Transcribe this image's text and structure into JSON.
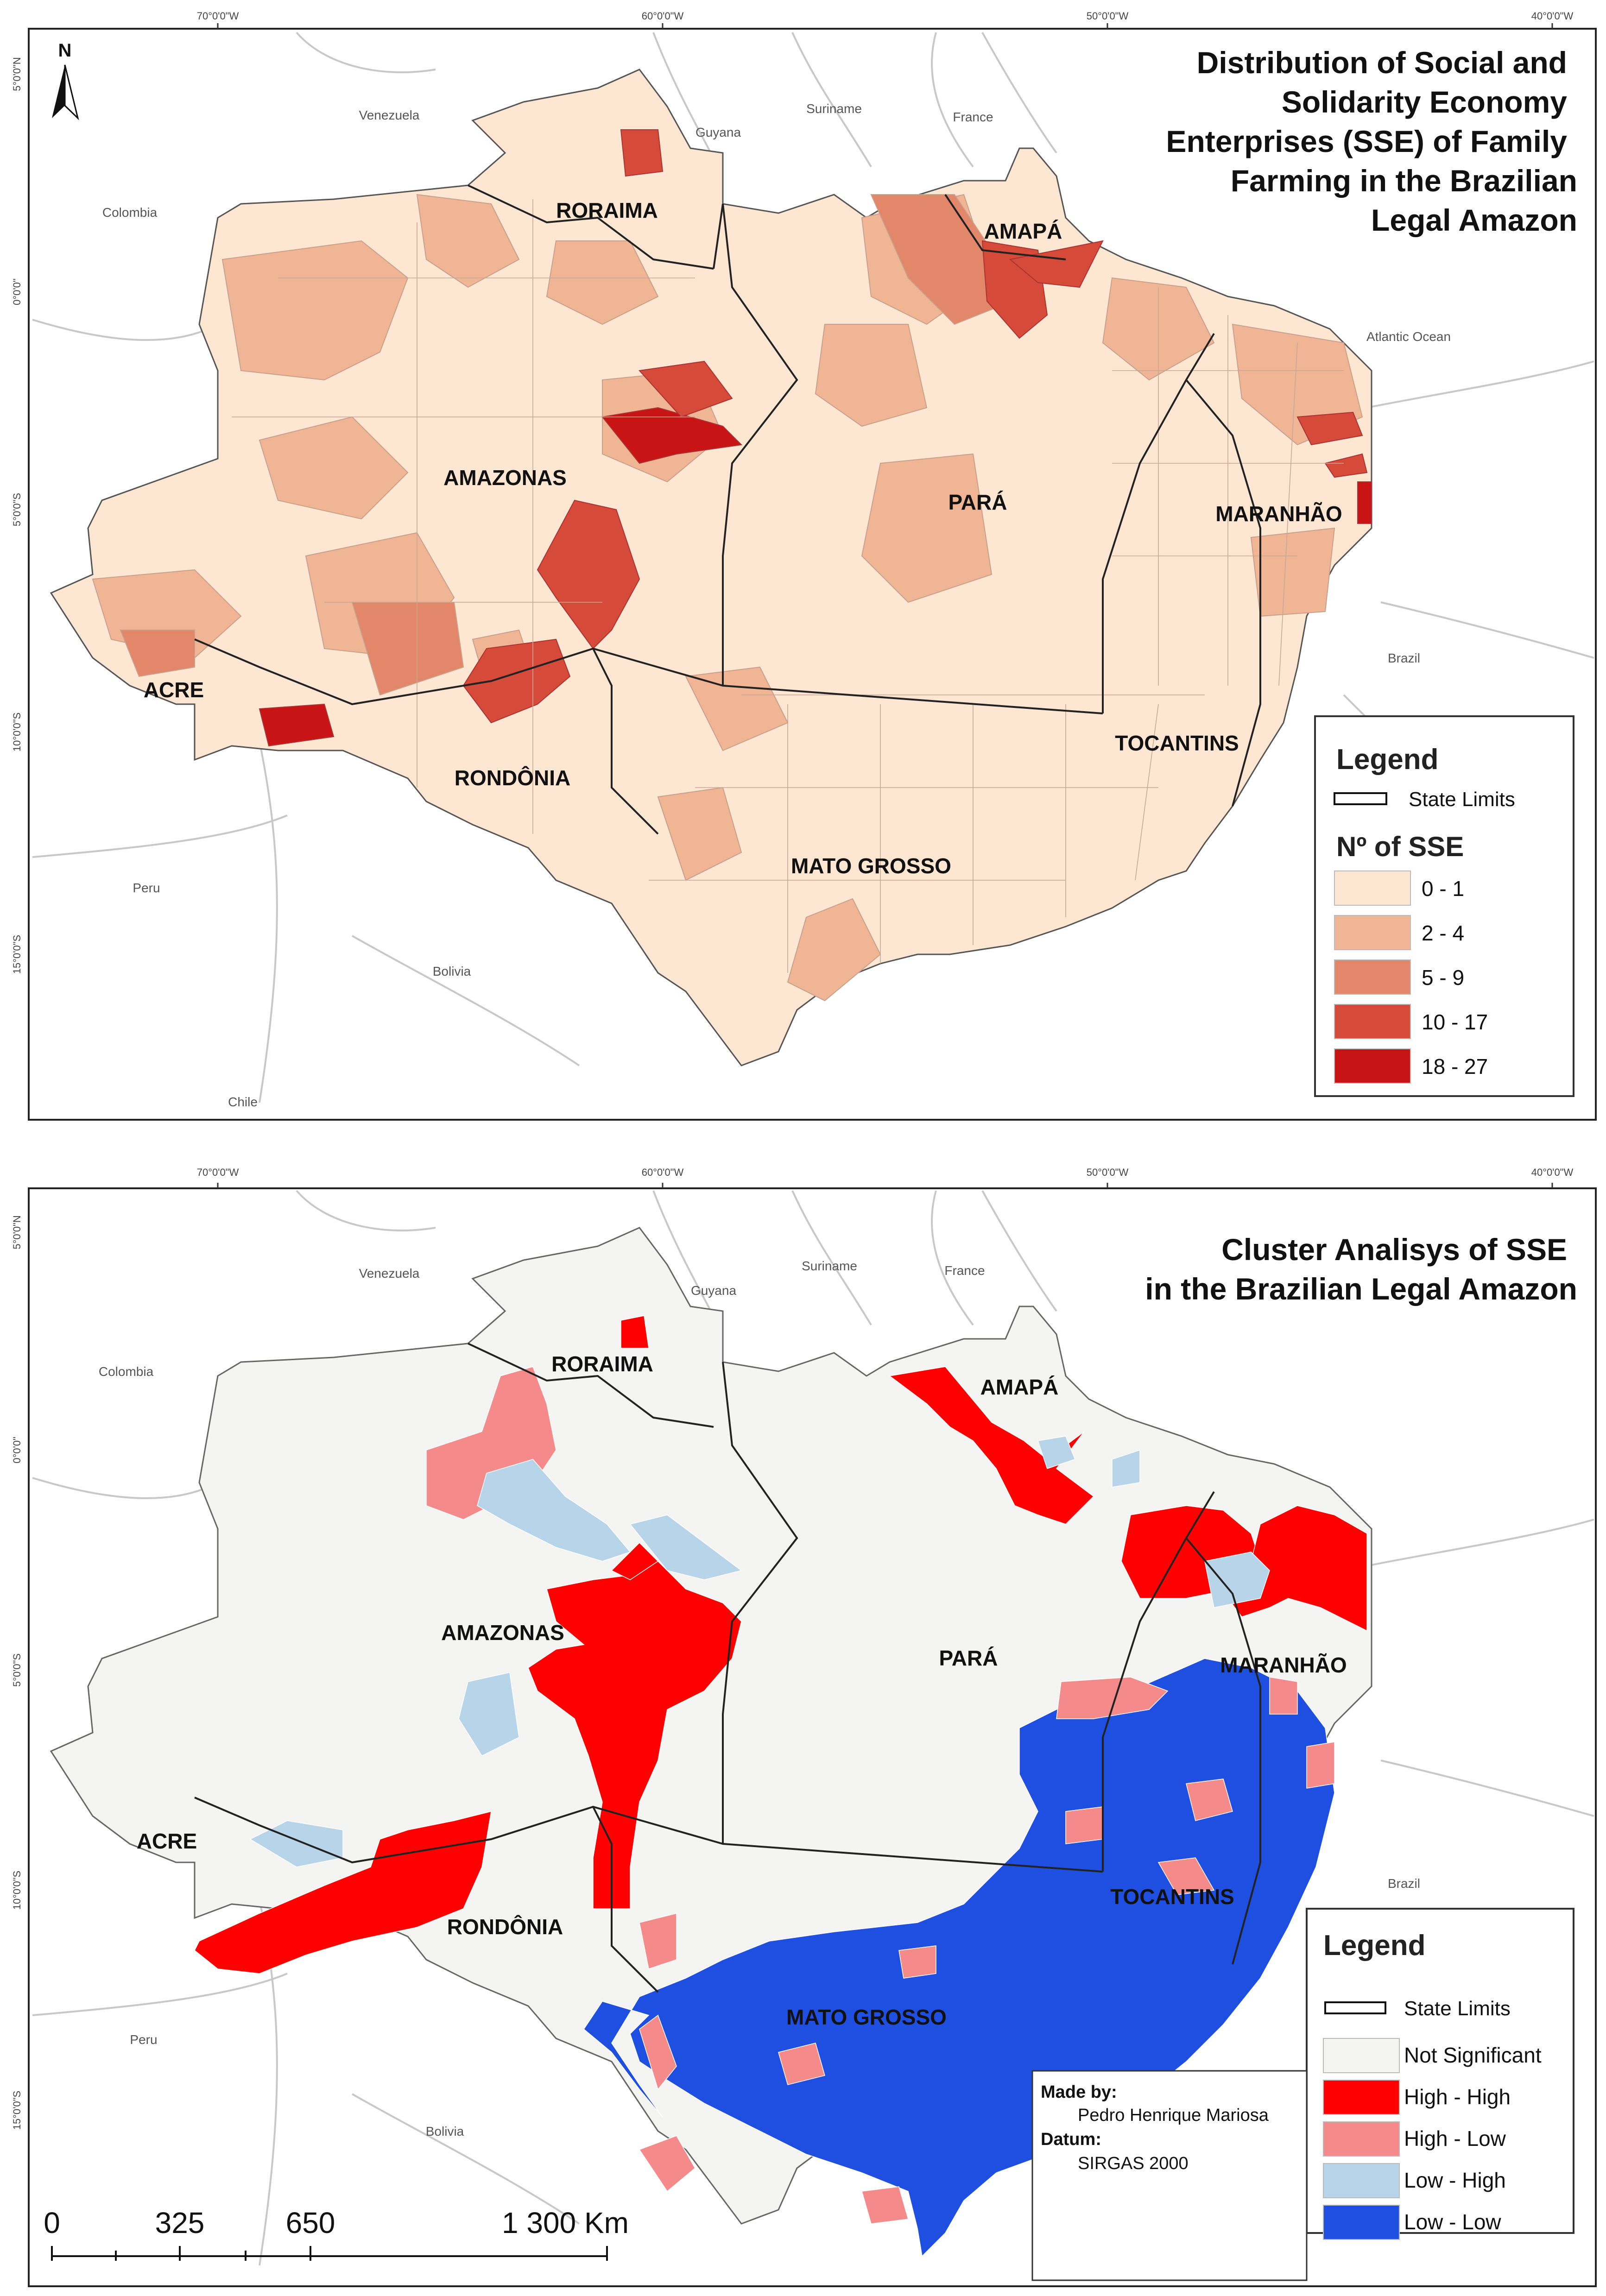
{
  "map1": {
    "title": [
      "Distribution of Social and",
      "Solidarity Economy",
      "Enterprises (SSE) of Family",
      "Farming in the Brazilian",
      "Legal Amazon"
    ],
    "north": "N",
    "top_ticks": [
      "70°0'0\"W",
      "60°0'0\"W",
      "50°0'0\"W",
      "40°0'0\"W"
    ],
    "left_ticks": [
      "5°0'0\"N",
      "0°0'0\"",
      "5°0'0\"S",
      "10°0'0\"S",
      "15°0'0\"S"
    ],
    "countries": [
      "Venezuela",
      "Guyana",
      "Suriname",
      "France",
      "Colombia",
      "Atlantic Ocean",
      "Brazil",
      "Peru",
      "Bolivia",
      "Chile"
    ],
    "states": [
      "RORAIMA",
      "AMAPÁ",
      "AMAZONAS",
      "PARÁ",
      "MARANHÃO",
      "ACRE",
      "RONDÔNIA",
      "TOCANTINS",
      "MATO GROSSO"
    ],
    "legend": {
      "title": "Legend",
      "state_limits": "State Limits",
      "class_title": "Nº of SSE",
      "classes": [
        {
          "label": "0 - 1",
          "color": "#fde6d2"
        },
        {
          "label": "2 - 4",
          "color": "#efb594"
        },
        {
          "label": "5 - 9",
          "color": "#e2876a"
        },
        {
          "label": "10 - 17",
          "color": "#d64a3a"
        },
        {
          "label": "18 - 27",
          "color": "#c81414"
        }
      ]
    }
  },
  "map2": {
    "title": [
      "Cluster Analisys of SSE",
      "in the Brazilian Legal Amazon"
    ],
    "top_ticks": [
      "70°0'0\"W",
      "60°0'0\"W",
      "50°0'0\"W",
      "40°0'0\"W"
    ],
    "left_ticks": [
      "5°0'0\"N",
      "0°0'0\"",
      "5°0'0\"S",
      "10°0'0\"S",
      "15°0'0\"S"
    ],
    "countries": [
      "Venezuela",
      "Guyana",
      "Suriname",
      "France",
      "Colombia",
      "Brazil",
      "Peru",
      "Bolivia"
    ],
    "states": [
      "RORAIMA",
      "AMAPÁ",
      "AMAZONAS",
      "PARÁ",
      "MARANHÃO",
      "ACRE",
      "RONDÔNIA",
      "TOCANTINS",
      "MATO GROSSO"
    ],
    "legend": {
      "title": "Legend",
      "state_limits": "State Limits",
      "classes": [
        {
          "label": "Not Significant",
          "color": "#f4f4f2"
        },
        {
          "label": "High - High",
          "color": "#ff0000"
        },
        {
          "label": "High - Low",
          "color": "#f48a8a"
        },
        {
          "label": "Low - High",
          "color": "#b8d4e8"
        },
        {
          "label": "Low - Low",
          "color": "#1f4fe0"
        }
      ]
    },
    "credits": {
      "made_by_label": "Made by:",
      "made_by": "Pedro Henrique Mariosa",
      "datum_label": "Datum:",
      "datum": "SIRGAS 2000"
    },
    "scale": {
      "labels": [
        "0",
        "325",
        "650",
        "1 300 Km"
      ]
    }
  }
}
